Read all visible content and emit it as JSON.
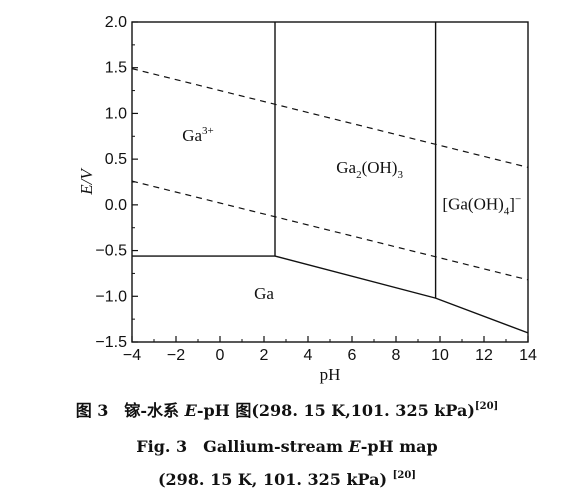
{
  "chart_data": {
    "type": "line",
    "xlabel": "pH",
    "ylabel": "E/V",
    "xlim": [
      -4,
      14
    ],
    "ylim": [
      -1.5,
      2.0
    ],
    "x_ticks": [
      "−4",
      "−2",
      "0",
      "2",
      "4",
      "6",
      "8",
      "10",
      "12",
      "14"
    ],
    "y_ticks": [
      "2.0",
      "1.5",
      "1.0",
      "0.5",
      "0.0",
      "−0.5",
      "−1.0",
      "−1.5"
    ],
    "grid": false,
    "series": [
      {
        "style": "solid",
        "points": [
          [
            -4,
            -0.56
          ],
          [
            2.5,
            -0.56
          ]
        ]
      },
      {
        "style": "solid",
        "points": [
          [
            2.5,
            -0.56
          ],
          [
            9.8,
            -1.02
          ],
          [
            14,
            -1.4
          ]
        ]
      },
      {
        "style": "solid",
        "points": [
          [
            2.5,
            -0.56
          ],
          [
            2.5,
            2.0
          ]
        ]
      },
      {
        "style": "solid",
        "points": [
          [
            9.8,
            -1.02
          ],
          [
            9.8,
            2.0
          ]
        ]
      },
      {
        "style": "dashed",
        "points": [
          [
            -4,
            1.49
          ],
          [
            14,
            0.41
          ]
        ]
      },
      {
        "style": "dashed",
        "points": [
          [
            -4,
            0.26
          ],
          [
            14,
            -0.82
          ]
        ]
      }
    ],
    "regions": [
      {
        "base": "Ga",
        "sup": "3+",
        "x": -1,
        "y": 0.7
      },
      {
        "pre": "Ga",
        "sub1": "2",
        "mid": "(OH)",
        "sub2": "3",
        "x": 6.8,
        "y": 0.35
      },
      {
        "pre": "[Ga(OH)",
        "sub1": "4",
        "mid": "]",
        "sup": "−",
        "x": 11.9,
        "y": -0.05
      },
      {
        "base": "Ga",
        "x": 2,
        "y": -1.03
      }
    ]
  },
  "captions": {
    "zh_prefix": "图 3　镓-水系 ",
    "zh_e": "E",
    "zh_mid": "-pH 图(298. 15 K,101. 325 kPa)",
    "zh_ref": "[20]",
    "en1_prefix": "Fig. 3　Gallium-stream ",
    "en1_e": "E",
    "en1_suffix": "-pH map",
    "en2_text": "(298. 15 K, 101. 325 kPa)",
    "en2_ref": "[20]"
  }
}
